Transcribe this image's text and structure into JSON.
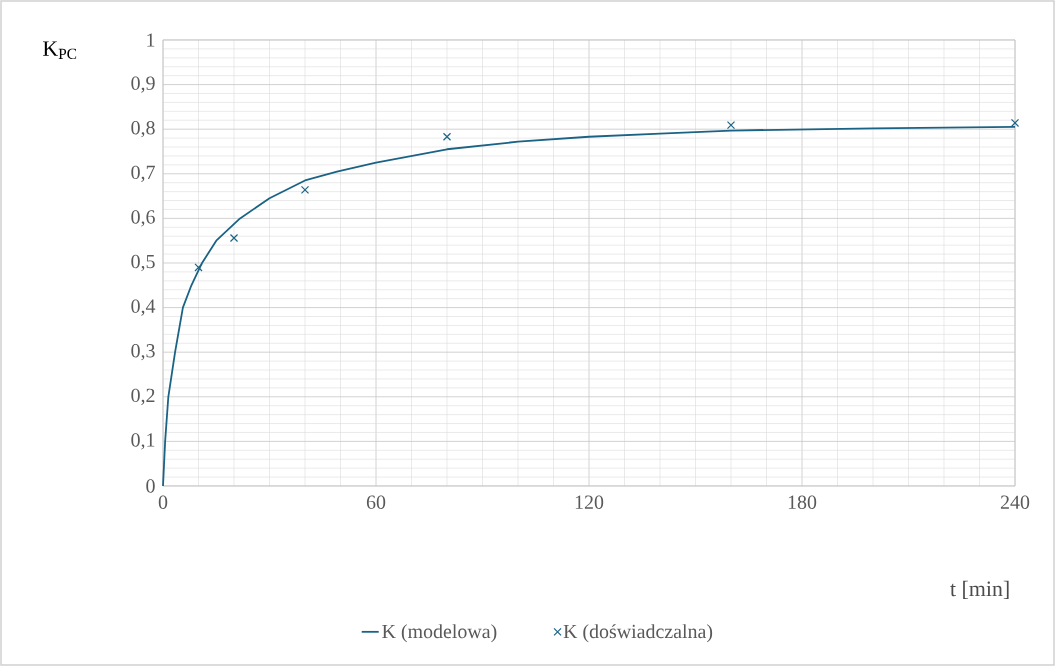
{
  "chart_data": {
    "type": "line",
    "xlabel": "t [min]",
    "ylabel": "K$_{PC}$",
    "xlim": [
      0,
      240
    ],
    "ylim": [
      0,
      1
    ],
    "xticks": [
      0,
      60,
      120,
      180,
      240
    ],
    "yticks": [
      0,
      {
        "value": 0.1,
        "label": "0,1"
      },
      {
        "value": 0.2,
        "label": "0,2"
      },
      {
        "value": 0.3,
        "label": "0,3"
      },
      {
        "value": 0.4,
        "label": "0,4"
      },
      {
        "value": 0.5,
        "label": "0,5"
      },
      {
        "value": 0.6,
        "label": "0,6"
      },
      {
        "value": 0.7,
        "label": "0,7"
      },
      {
        "value": 0.8,
        "label": "0,8"
      },
      {
        "value": 0.9,
        "label": "0,9"
      },
      1
    ],
    "grid": true,
    "legend": "bottom",
    "series": [
      {
        "name": "K (modelowa)",
        "color": "#1b6385",
        "marker": "none",
        "line_style": "solid",
        "x": [
          0,
          0.6,
          1.5,
          3.4,
          5.6,
          8,
          11,
          15,
          21.7,
          30,
          40,
          49,
          60,
          80,
          100,
          120,
          140,
          160,
          200,
          240
        ],
        "values": [
          0,
          0.1,
          0.2,
          0.3,
          0.4,
          0.45,
          0.5,
          0.55,
          0.6,
          0.645,
          0.685,
          0.705,
          0.725,
          0.755,
          0.772,
          0.783,
          0.79,
          0.797,
          0.802,
          0.805
        ]
      },
      {
        "name": "K (doświadczalna)",
        "type": "scatter",
        "color": "#1b6385",
        "marker": "cross",
        "x": [
          10,
          20,
          40,
          80,
          160,
          240
        ],
        "values": [
          0.49,
          0.556,
          0.664,
          0.783,
          0.809,
          0.814
        ]
      }
    ]
  }
}
